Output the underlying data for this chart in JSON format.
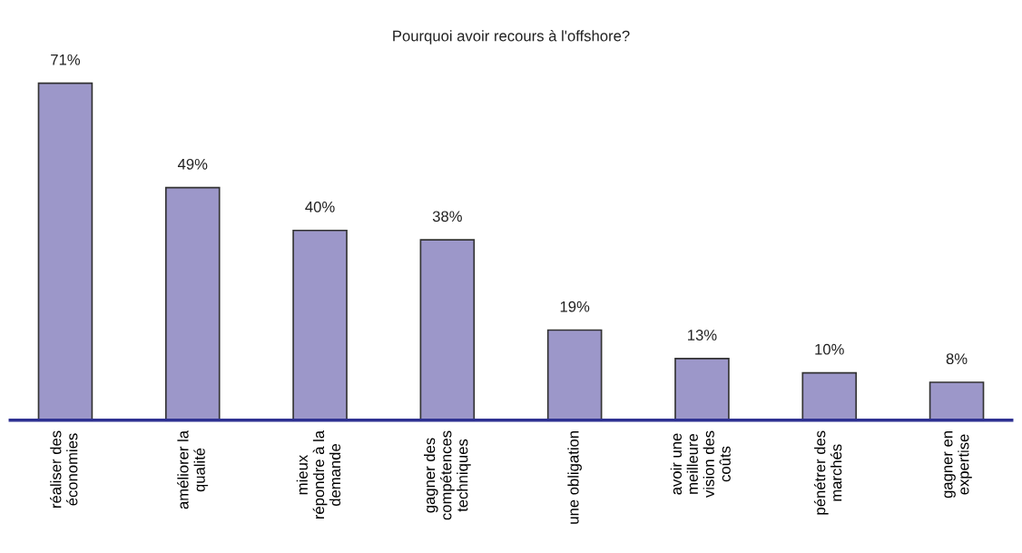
{
  "chart_data": {
    "type": "bar",
    "title": "Pourquoi avoir recours à l'offshore?",
    "categories": [
      "réaliser des\néconomies",
      "améliorer la\nqualité",
      "mieux\nrépondre à la\ndemande",
      "gagner des\ncompétences\ntechniques",
      "une obligation",
      "avoir une\nmeilleure\nvision des\ncoûts",
      "pénétrer des\nmarchés",
      "gagner en\nexpertise"
    ],
    "values": [
      71,
      49,
      40,
      38,
      19,
      13,
      10,
      8
    ],
    "value_labels": [
      "71%",
      "49%",
      "40%",
      "38%",
      "19%",
      "13%",
      "10%",
      "8%"
    ],
    "color": "#9c97c9",
    "grid": false,
    "legend": false
  }
}
